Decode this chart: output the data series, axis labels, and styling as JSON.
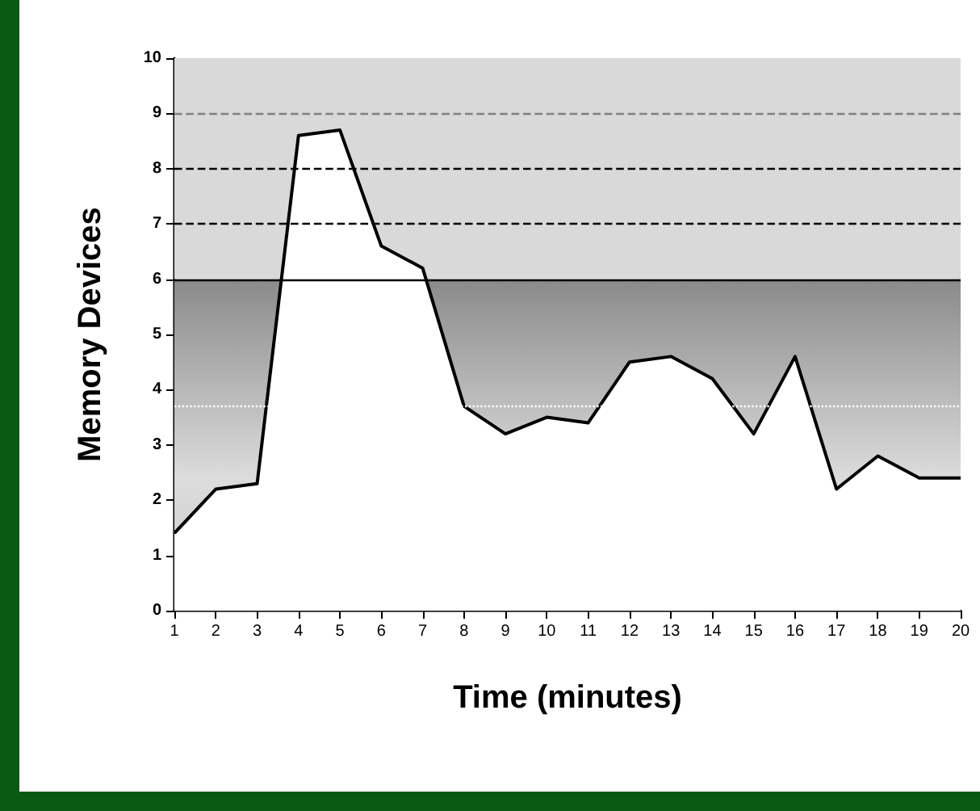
{
  "chart_data": {
    "type": "area",
    "xlabel": "Time (minutes)",
    "ylabel": "Memory Devices",
    "categories": [
      "1",
      "2",
      "3",
      "4",
      "5",
      "6",
      "7",
      "8",
      "9",
      "10",
      "11",
      "12",
      "13",
      "14",
      "15",
      "16",
      "17",
      "18",
      "19",
      "20"
    ],
    "series": [
      {
        "color": "#000000",
        "values": [
          1.4,
          2.2,
          2.3,
          8.6,
          8.7,
          6.6,
          6.2,
          3.7,
          3.2,
          3.5,
          3.4,
          4.5,
          4.6,
          4.2,
          3.2,
          4.6,
          2.2,
          2.8,
          2.4,
          2.4
        ]
      }
    ],
    "ylim": [
      0,
      10
    ],
    "yticks": [
      0,
      1,
      2,
      3,
      4,
      5,
      6,
      7,
      8,
      9,
      10
    ],
    "bands": [
      {
        "axis": "y",
        "from": 0,
        "to": 6,
        "color": "#8a8a8a"
      },
      {
        "axis": "y",
        "from": 6,
        "to": 10,
        "color": "#d9d9d9"
      }
    ],
    "ref_lines": [
      {
        "axis": "y",
        "value": 6,
        "color": "#000000",
        "line_style": "solid"
      },
      {
        "axis": "y",
        "value": 7,
        "color": "#000000",
        "line_style": "dashed"
      },
      {
        "axis": "y",
        "value": 8,
        "color": "#000000",
        "line_style": "dashed"
      },
      {
        "axis": "y",
        "value": 9,
        "color": "#808080",
        "line_style": "dashed"
      },
      {
        "axis": "y",
        "value": 3.7,
        "color": "#ffffff",
        "line_style": "dotted"
      }
    ],
    "grid": false,
    "marker": "none",
    "line_style": "solid"
  }
}
